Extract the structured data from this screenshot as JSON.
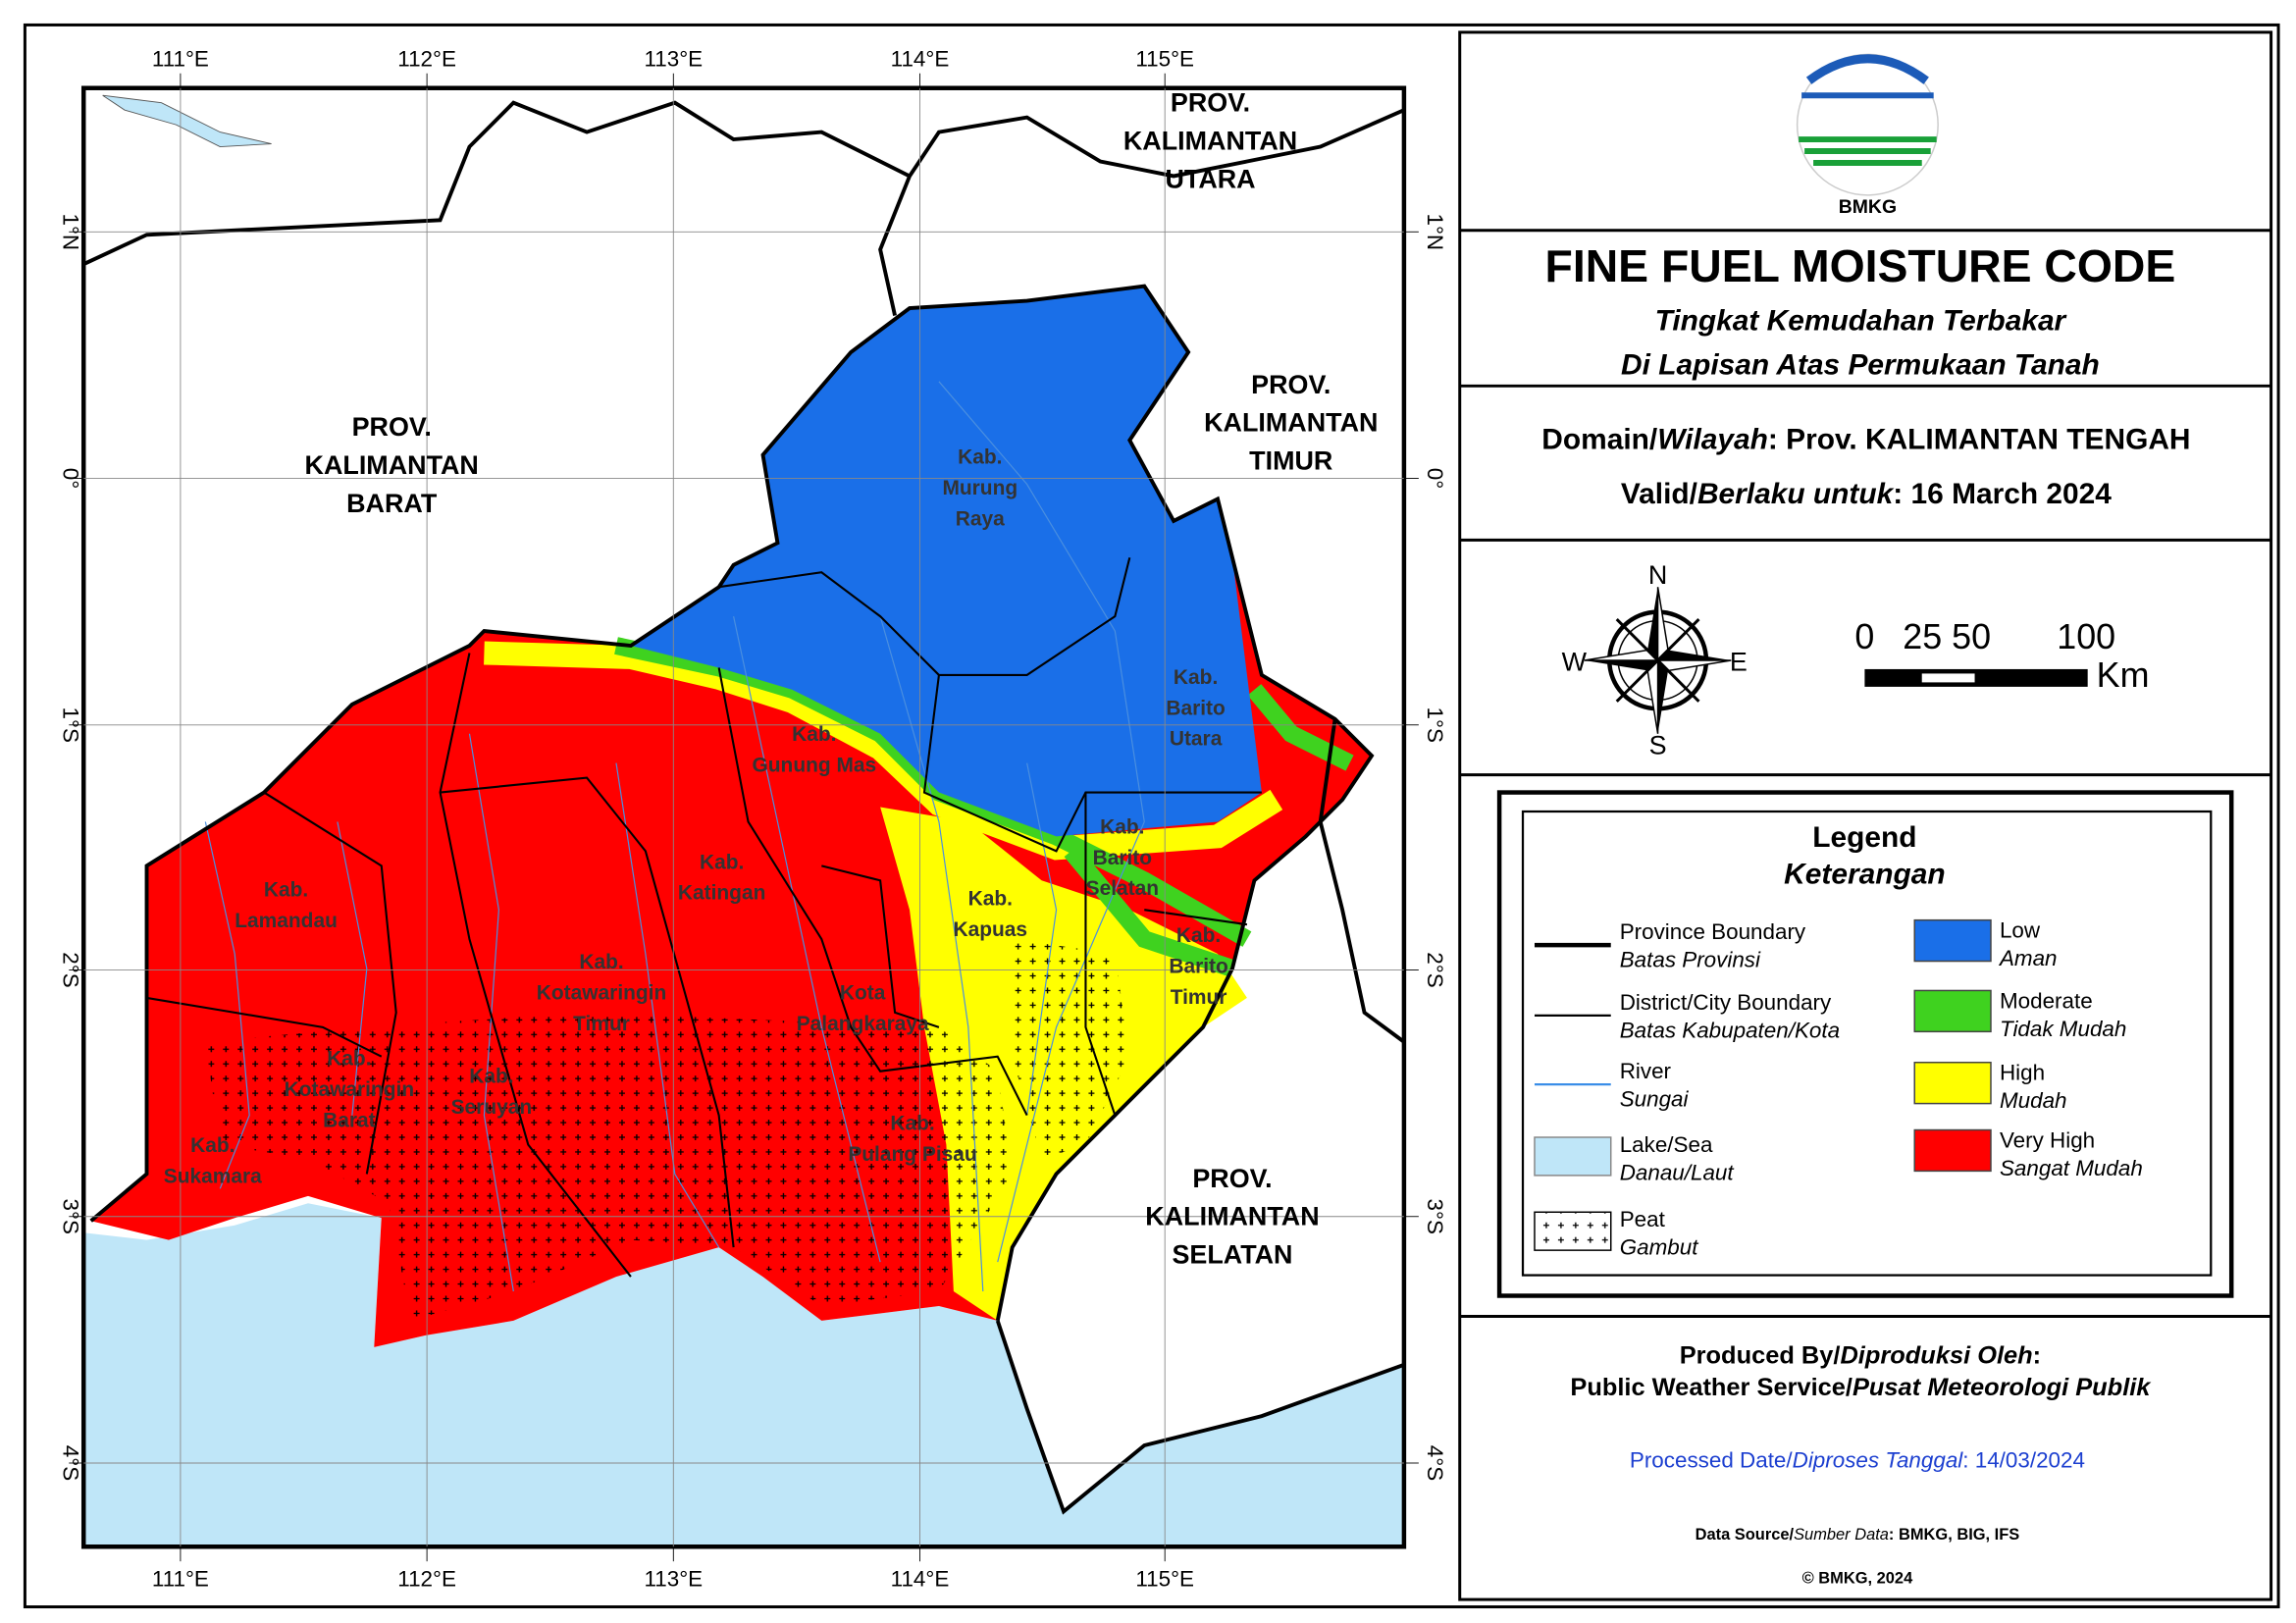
{
  "map": {
    "lon_labels": [
      "111°E",
      "112°E",
      "113°E",
      "114°E",
      "115°E"
    ],
    "lat_labels": [
      "1°N",
      "0°",
      "1°S",
      "2°S",
      "3°S",
      "4°S"
    ],
    "provinces": [
      {
        "lines": [
          "PROV.",
          "KALIMANTAN",
          "BARAT"
        ]
      },
      {
        "lines": [
          "PROV.",
          "KALIMANTAN",
          "UTARA"
        ]
      },
      {
        "lines": [
          "PROV.",
          "KALIMANTAN",
          "TIMUR"
        ]
      },
      {
        "lines": [
          "PROV.",
          "KALIMANTAN",
          "SELATAN"
        ]
      }
    ],
    "regencies": [
      {
        "lines": [
          "Kab.",
          "Murung",
          "Raya"
        ]
      },
      {
        "lines": [
          "Kab.",
          "Barito",
          "Utara"
        ]
      },
      {
        "lines": [
          "Kab.",
          "Gunung Mas"
        ]
      },
      {
        "lines": [
          "Kab.",
          "Barito",
          "Selatan"
        ]
      },
      {
        "lines": [
          "Kab.",
          "Katingan"
        ]
      },
      {
        "lines": [
          "Kab.",
          "Kapuas"
        ]
      },
      {
        "lines": [
          "Kab.",
          "Barito",
          "Timur"
        ]
      },
      {
        "lines": [
          "Kab.",
          "Lamandau"
        ]
      },
      {
        "lines": [
          "Kab.",
          "Kotawaringin",
          "Timur"
        ]
      },
      {
        "lines": [
          "Kota",
          "Palangkaraya"
        ]
      },
      {
        "lines": [
          "Kab.",
          "Kotawaringin",
          "Barat"
        ]
      },
      {
        "lines": [
          "Kab.",
          "Seruyan"
        ]
      },
      {
        "lines": [
          "Kab.",
          "Pulang Pisau"
        ]
      },
      {
        "lines": [
          "Kab.",
          "Sukamara"
        ]
      }
    ]
  },
  "header": {
    "logo": "BMKG",
    "title": "FINE FUEL MOISTURE CODE",
    "subtitle": [
      "Tingkat Kemudahan Terbakar",
      "Di Lapisan Atas Permukaan Tanah"
    ]
  },
  "domain": {
    "label": "Domain/",
    "label_local": "Wilayah",
    "value": ": Prov. KALIMANTAN TENGAH"
  },
  "valid": {
    "label": "Valid/",
    "label_local": "Berlaku untuk",
    "value": ": 16 March 2024"
  },
  "compass": [
    "N",
    "E",
    "S",
    "W"
  ],
  "scale": {
    "ticks": [
      "0",
      "25 50",
      "100"
    ],
    "unit": "Km"
  },
  "legend": {
    "title": "Legend",
    "subtitle": "Keterangan",
    "items": [
      {
        "label": "Province Boundary",
        "label_local": "Batas Provinsi"
      },
      {
        "label": "District/City Boundary",
        "label_local": "Batas Kabupaten/Kota"
      },
      {
        "label": "River",
        "label_local": "Sungai"
      },
      {
        "label": "Lake/Sea",
        "label_local": "Danau/Laut"
      },
      {
        "label": "Peat",
        "label_local": "Gambut"
      },
      {
        "label": "Low",
        "label_local": "Aman",
        "color": "#1a6fe8"
      },
      {
        "label": "Moderate",
        "label_local": "Tidak Mudah",
        "color": "#3fd21f"
      },
      {
        "label": "High",
        "label_local": "Mudah",
        "color": "#ffff00"
      },
      {
        "label": "Very High",
        "label_local": "Sangat Mudah",
        "color": "#ff0000"
      }
    ]
  },
  "footer": {
    "produced": {
      "label": "Produced By/",
      "label_local": "Diproduksi Oleh",
      "value": ":"
    },
    "producer": {
      "label": "Public Weather Service/",
      "label_local": "Pusat Meteorologi Publik"
    },
    "processed": {
      "label": "Processed Date/",
      "label_local": "Diproses Tanggal",
      "value": ": 14/03/2024"
    },
    "source": {
      "label": "Data Source/",
      "label_local": "Sumber Data",
      "value": ": BMKG, BIG, IFS"
    },
    "copyright": "© BMKG, 2024"
  }
}
